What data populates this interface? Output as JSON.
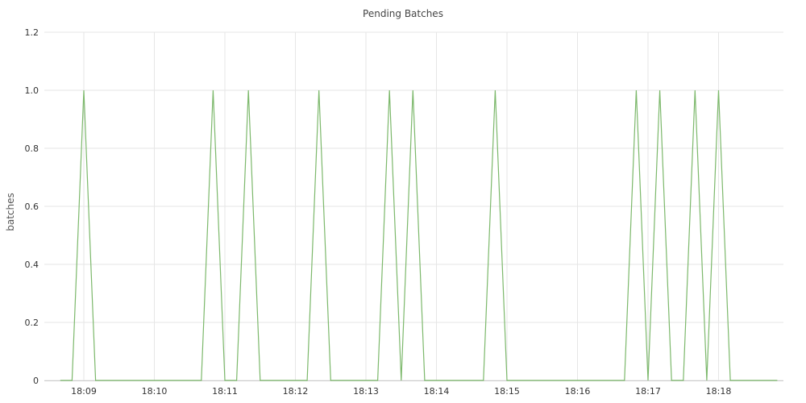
{
  "chart_data": {
    "type": "line",
    "title": "Pending Batches",
    "ylabel": "batches",
    "xlabel": "",
    "ylim": [
      0,
      1.2
    ],
    "y_ticks": [
      "0",
      "0.2",
      "0.4",
      "0.6",
      "0.8",
      "1.0",
      "1.2"
    ],
    "x_ticks": [
      "18:09",
      "18:10",
      "18:11",
      "18:12",
      "18:13",
      "18:14",
      "18:15",
      "18:16",
      "18:17",
      "18:18"
    ],
    "x_range": [
      "18:08:30",
      "18:18:50"
    ],
    "grid": true,
    "line_color": "#7cb86b",
    "series": [
      {
        "x": [
          "18:08:40",
          "18:08:50",
          "18:09:00",
          "18:09:10",
          "18:09:20",
          "18:09:30",
          "18:09:40",
          "18:09:50",
          "18:10:00",
          "18:10:10",
          "18:10:20",
          "18:10:30",
          "18:10:40",
          "18:10:50",
          "18:11:00",
          "18:11:10",
          "18:11:20",
          "18:11:30",
          "18:11:40",
          "18:11:50",
          "18:12:00",
          "18:12:10",
          "18:12:20",
          "18:12:30",
          "18:12:40",
          "18:12:50",
          "18:13:00",
          "18:13:10",
          "18:13:20",
          "18:13:30",
          "18:13:40",
          "18:13:50",
          "18:14:00",
          "18:14:10",
          "18:14:20",
          "18:14:30",
          "18:14:40",
          "18:14:50",
          "18:15:00",
          "18:15:10",
          "18:15:20",
          "18:15:30",
          "18:15:40",
          "18:15:50",
          "18:16:00",
          "18:16:10",
          "18:16:20",
          "18:16:30",
          "18:16:40",
          "18:16:50",
          "18:17:00",
          "18:17:10",
          "18:17:20",
          "18:17:30",
          "18:17:40",
          "18:17:50",
          "18:18:00",
          "18:18:10",
          "18:18:20",
          "18:18:30",
          "18:18:40",
          "18:18:50"
        ],
        "y": [
          0,
          0,
          1,
          0,
          0,
          0,
          0,
          0,
          0,
          0,
          0,
          0,
          0,
          1,
          0,
          0,
          1,
          0,
          0,
          0,
          0,
          0,
          1,
          0,
          0,
          0,
          0,
          0,
          1,
          0,
          1,
          0,
          0,
          0,
          0,
          0,
          0,
          1,
          0,
          0,
          0,
          0,
          0,
          0,
          0,
          0,
          0,
          0,
          0,
          1,
          0,
          1,
          0,
          0,
          1,
          0,
          1,
          0,
          0,
          0,
          0,
          0
        ]
      }
    ]
  }
}
